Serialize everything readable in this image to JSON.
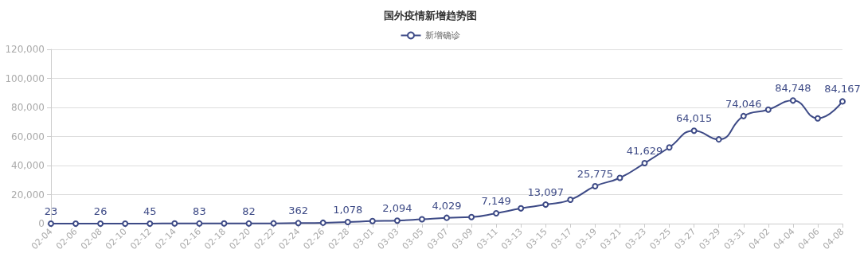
{
  "chart_data": {
    "type": "line",
    "title": "国外疫情新增趋势图",
    "categories": [
      "02-04",
      "02-06",
      "02-08",
      "02-10",
      "02-12",
      "02-14",
      "02-16",
      "02-18",
      "02-20",
      "02-22",
      "02-24",
      "02-26",
      "02-28",
      "03-01",
      "03-03",
      "03-05",
      "03-07",
      "03-09",
      "03-11",
      "03-13",
      "03-15",
      "03-17",
      "03-19",
      "03-21",
      "03-23",
      "03-25",
      "03-27",
      "03-29",
      "03-31",
      "04-02",
      "04-04",
      "04-06",
      "04-08"
    ],
    "series": [
      {
        "name": "新增确诊",
        "color": "#3d4a86",
        "values": [
          23,
          0,
          26,
          0,
          45,
          100,
          83,
          100,
          82,
          200,
          362,
          600,
          1078,
          1800,
          2094,
          3000,
          4029,
          4500,
          7149,
          10500,
          13097,
          16400,
          25775,
          31500,
          41629,
          52500,
          64015,
          58000,
          74046,
          78500,
          84748,
          72500,
          84167
        ],
        "value_labels": [
          "23",
          null,
          "26",
          null,
          "45",
          null,
          "83",
          null,
          "82",
          null,
          "362",
          null,
          "1,078",
          null,
          "2,094",
          null,
          "4,029",
          null,
          "7,149",
          null,
          "13,097",
          null,
          "25,775",
          null,
          "41,629",
          null,
          "64,015",
          null,
          "74,046",
          null,
          "84,748",
          null,
          "84,167"
        ]
      }
    ],
    "ylim": [
      0,
      120000
    ],
    "yticks": [
      0,
      {
        "value": 20000,
        "label": "20,000"
      },
      {
        "value": 40000,
        "label": "40,000"
      },
      {
        "value": 60000,
        "label": "60,000"
      },
      {
        "value": 80000,
        "label": "80,000"
      },
      {
        "value": 100000,
        "label": "100,000"
      },
      {
        "value": 120000,
        "label": "120,000"
      }
    ],
    "grid": "y",
    "legend": "top",
    "marker": "circle",
    "line_style": "solid"
  }
}
